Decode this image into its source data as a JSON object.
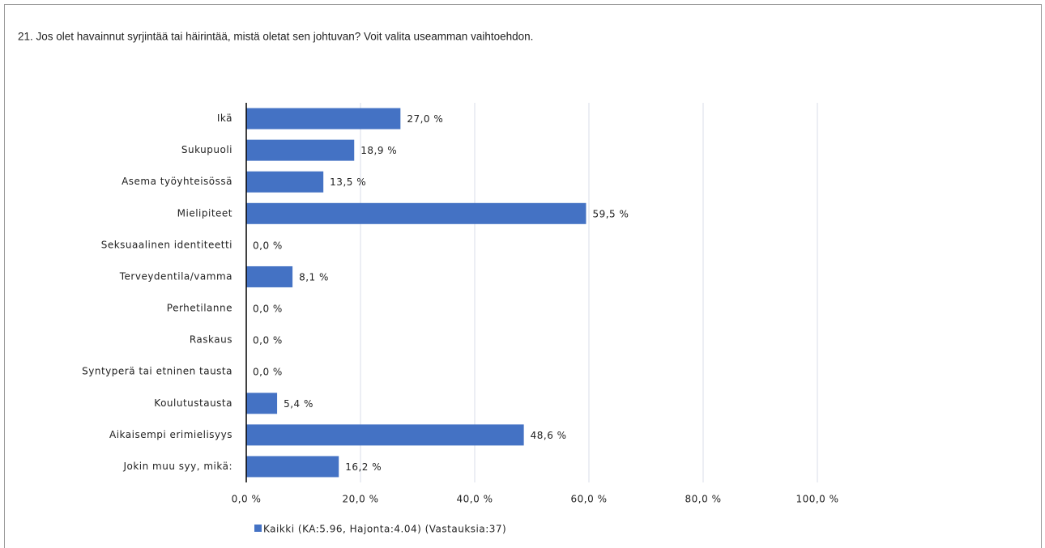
{
  "chart_data": {
    "type": "bar",
    "orientation": "horizontal",
    "title": "21. Jos olet havainnut syrjintää tai häirintää, mistä oletat sen johtuvan? Voit valita useamman vaihtoehdon.",
    "categories": [
      "Ikä",
      "Sukupuoli",
      "Asema työyhteisössä",
      "Mielipiteet",
      "Seksuaalinen identiteetti",
      "Terveydentila/vamma",
      "Perhetilanne",
      "Raskaus",
      "Syntyperä tai etninen tausta",
      "Koulutustausta",
      "Aikaisempi erimielisyys",
      "Jokin muu syy, mikä:"
    ],
    "series": [
      {
        "name": "Kaikki (KA:5.96, Hajonta:4.04) (Vastauksia:37)",
        "color": "#4472c4",
        "values": [
          27.0,
          18.9,
          13.5,
          59.5,
          0.0,
          8.1,
          0.0,
          0.0,
          0.0,
          5.4,
          48.6,
          16.2
        ],
        "value_labels": [
          "27,0 %",
          "18,9 %",
          "13,5 %",
          "59,5 %",
          "0,0 %",
          "8,1 %",
          "0,0 %",
          "0,0 %",
          "0,0 %",
          "5,4 %",
          "48,6 %",
          "16,2 %"
        ]
      }
    ],
    "xlim": [
      0,
      100
    ],
    "xticks": [
      {
        "value": 0,
        "label": "0,0 %"
      },
      {
        "value": 20,
        "label": "20,0 %"
      },
      {
        "value": 40,
        "label": "40,0 %"
      },
      {
        "value": 60,
        "label": "60,0 %"
      },
      {
        "value": 80,
        "label": "80,0 %"
      },
      {
        "value": 100,
        "label": "100,0 %"
      }
    ],
    "grid": true,
    "legend": "bottom"
  }
}
